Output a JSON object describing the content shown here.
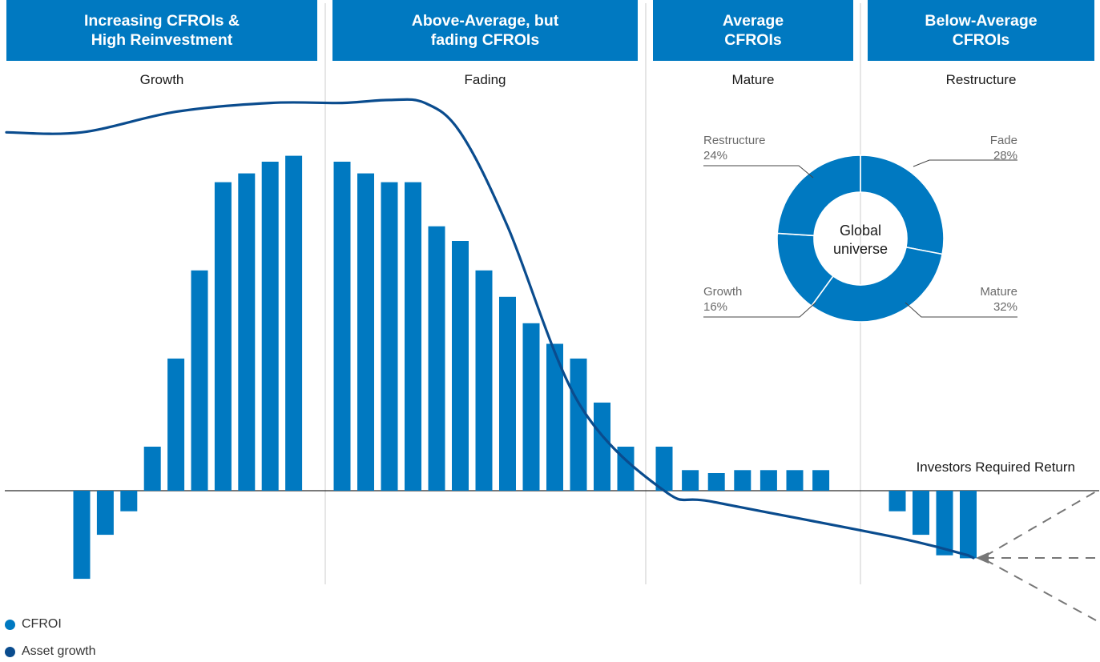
{
  "chart_data": {
    "type": "bar",
    "stages": [
      {
        "header": "Increasing CFROIs &\nHigh Reinvestment",
        "phase": "Growth"
      },
      {
        "header": "Above-Average, but\nfading CFROIs",
        "phase": "Fading"
      },
      {
        "header": "Average\nCFROIs",
        "phase": "Mature"
      },
      {
        "header": "Below-Average\nCFROIs",
        "phase": "Restructure"
      }
    ],
    "series": [
      {
        "name": "CFROI",
        "color": "#0079C1",
        "values": [
          -3.0,
          -1.5,
          -0.7,
          1.5,
          4.5,
          7.5,
          10.5,
          10.8,
          11.2,
          11.4,
          11.2,
          10.8,
          10.5,
          10.5,
          9.0,
          8.5,
          7.5,
          6.6,
          5.7,
          5.0,
          4.5,
          3.0,
          1.5,
          1.5,
          0.7,
          0.6,
          0.7,
          0.7,
          0.7,
          0.7,
          -0.7,
          -1.5,
          -2.2,
          -2.3
        ]
      },
      {
        "name": "Asset growth",
        "color": "#0A4C8E",
        "x": [
          0,
          4,
          8,
          10,
          12,
          13.5,
          15,
          17,
          20,
          23,
          25,
          30,
          33
        ],
        "values": [
          12.2,
          12.9,
          13.2,
          13.2,
          13.3,
          13.2,
          12.2,
          9.0,
          3.0,
          0.0,
          -0.4,
          -1.6,
          -2.2
        ]
      }
    ],
    "threshold": {
      "label": "Investors Required Return",
      "value": 0
    },
    "donut": {
      "center_label": "Global\nuniverse",
      "slices": [
        {
          "name": "Fade",
          "pct": "28%",
          "value": 28
        },
        {
          "name": "Mature",
          "pct": "32%",
          "value": 32
        },
        {
          "name": "Growth",
          "pct": "16%",
          "value": 16
        },
        {
          "name": "Restructure",
          "pct": "24%",
          "value": 24
        }
      ]
    },
    "ylim": [
      -3.5,
      15.5
    ]
  }
}
